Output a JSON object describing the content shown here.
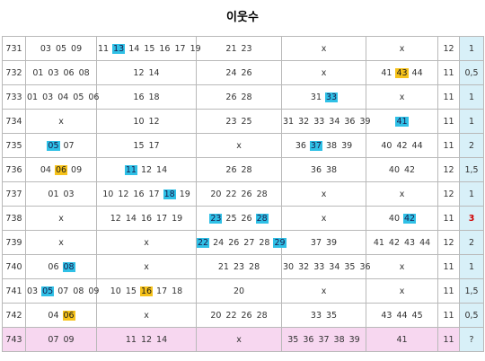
{
  "title": "이웃수",
  "colors": {
    "blue": "#2fc0e6",
    "yellow": "#f6c21a",
    "value_bg": "#d8f0f8",
    "highlight_row": "#f7d7f0",
    "red": "#d00000"
  },
  "rows": [
    {
      "no": "731",
      "c1": [
        {
          "t": "03"
        },
        {
          "t": "05"
        },
        {
          "t": "09"
        }
      ],
      "c2": [
        {
          "t": "11"
        },
        {
          "t": "13",
          "h": "blue"
        },
        {
          "t": "14"
        },
        {
          "t": "15"
        },
        {
          "t": "16"
        },
        {
          "t": "17"
        },
        {
          "t": "19"
        }
      ],
      "c3": [
        {
          "t": "21"
        },
        {
          "t": "23"
        }
      ],
      "c4": [
        {
          "t": "x"
        }
      ],
      "c5": [
        {
          "t": "x"
        }
      ],
      "cnt": "12",
      "val": "1"
    },
    {
      "no": "732",
      "c1": [
        {
          "t": "01"
        },
        {
          "t": "03"
        },
        {
          "t": "06"
        },
        {
          "t": "08"
        }
      ],
      "c2": [
        {
          "t": "12"
        },
        {
          "t": "14"
        }
      ],
      "c3": [
        {
          "t": "24"
        },
        {
          "t": "26"
        }
      ],
      "c4": [
        {
          "t": "x"
        }
      ],
      "c5": [
        {
          "t": "41"
        },
        {
          "t": "43",
          "h": "yellow"
        },
        {
          "t": "44"
        }
      ],
      "cnt": "11",
      "val": "0,5"
    },
    {
      "no": "733",
      "c1": [
        {
          "t": "01"
        },
        {
          "t": "03"
        },
        {
          "t": "04"
        },
        {
          "t": "05"
        },
        {
          "t": "06"
        }
      ],
      "c2": [
        {
          "t": "16"
        },
        {
          "t": "18"
        }
      ],
      "c3": [
        {
          "t": "26"
        },
        {
          "t": "28"
        }
      ],
      "c4": [
        {
          "t": "31"
        },
        {
          "t": "33",
          "h": "blue"
        }
      ],
      "c5": [
        {
          "t": "x"
        }
      ],
      "cnt": "11",
      "val": "1"
    },
    {
      "no": "734",
      "c1": [
        {
          "t": "x"
        }
      ],
      "c2": [
        {
          "t": "10"
        },
        {
          "t": "12"
        }
      ],
      "c3": [
        {
          "t": "23"
        },
        {
          "t": "25"
        }
      ],
      "c4": [
        {
          "t": "31"
        },
        {
          "t": "32"
        },
        {
          "t": "33"
        },
        {
          "t": "34"
        },
        {
          "t": "36"
        },
        {
          "t": "39"
        }
      ],
      "c5": [
        {
          "t": "41",
          "h": "blue"
        }
      ],
      "cnt": "11",
      "val": "1"
    },
    {
      "no": "735",
      "c1": [
        {
          "t": "05",
          "h": "blue"
        },
        {
          "t": "07"
        }
      ],
      "c2": [
        {
          "t": "15"
        },
        {
          "t": "17"
        }
      ],
      "c3": [
        {
          "t": "x"
        }
      ],
      "c4": [
        {
          "t": "36"
        },
        {
          "t": "37",
          "h": "blue"
        },
        {
          "t": "38"
        },
        {
          "t": "39"
        }
      ],
      "c5": [
        {
          "t": "40"
        },
        {
          "t": "42"
        },
        {
          "t": "44"
        }
      ],
      "cnt": "11",
      "val": "2"
    },
    {
      "no": "736",
      "c1": [
        {
          "t": "04"
        },
        {
          "t": "06",
          "h": "yellow"
        },
        {
          "t": "09"
        }
      ],
      "c2": [
        {
          "t": "11",
          "h": "blue"
        },
        {
          "t": "12"
        },
        {
          "t": "14"
        }
      ],
      "c3": [
        {
          "t": "26"
        },
        {
          "t": "28"
        }
      ],
      "c4": [
        {
          "t": "36"
        },
        {
          "t": "38"
        }
      ],
      "c5": [
        {
          "t": "40"
        },
        {
          "t": "42"
        }
      ],
      "cnt": "12",
      "val": "1,5"
    },
    {
      "no": "737",
      "c1": [
        {
          "t": "01"
        },
        {
          "t": "03"
        }
      ],
      "c2": [
        {
          "t": "10"
        },
        {
          "t": "12"
        },
        {
          "t": "16"
        },
        {
          "t": "17"
        },
        {
          "t": "18",
          "h": "blue"
        },
        {
          "t": "19"
        }
      ],
      "c3": [
        {
          "t": "20"
        },
        {
          "t": "22"
        },
        {
          "t": "26"
        },
        {
          "t": "28"
        }
      ],
      "c4": [
        {
          "t": "x"
        }
      ],
      "c5": [
        {
          "t": "x"
        }
      ],
      "cnt": "12",
      "val": "1"
    },
    {
      "no": "738",
      "c1": [
        {
          "t": "x"
        }
      ],
      "c2": [
        {
          "t": "12"
        },
        {
          "t": "14"
        },
        {
          "t": "16"
        },
        {
          "t": "17"
        },
        {
          "t": "19"
        }
      ],
      "c3": [
        {
          "t": "23",
          "h": "blue"
        },
        {
          "t": "25"
        },
        {
          "t": "26"
        },
        {
          "t": "28",
          "h": "blue"
        }
      ],
      "c4": [
        {
          "t": "x"
        }
      ],
      "c5": [
        {
          "t": "40"
        },
        {
          "t": "42",
          "h": "blue"
        }
      ],
      "cnt": "11",
      "val": "3",
      "val_red": true
    },
    {
      "no": "739",
      "c1": [
        {
          "t": "x"
        }
      ],
      "c2": [
        {
          "t": "x"
        }
      ],
      "c3": [
        {
          "t": "22",
          "h": "blue"
        },
        {
          "t": "24"
        },
        {
          "t": "26"
        },
        {
          "t": "27"
        },
        {
          "t": "28"
        },
        {
          "t": "29",
          "h": "blue"
        }
      ],
      "c4": [
        {
          "t": "37"
        },
        {
          "t": "39"
        }
      ],
      "c5": [
        {
          "t": "41"
        },
        {
          "t": "42"
        },
        {
          "t": "43"
        },
        {
          "t": "44"
        }
      ],
      "cnt": "12",
      "val": "2"
    },
    {
      "no": "740",
      "c1": [
        {
          "t": "06"
        },
        {
          "t": "08",
          "h": "blue"
        }
      ],
      "c2": [
        {
          "t": "x"
        }
      ],
      "c3": [
        {
          "t": "21"
        },
        {
          "t": "23"
        },
        {
          "t": "28"
        }
      ],
      "c4": [
        {
          "t": "30"
        },
        {
          "t": "32"
        },
        {
          "t": "33"
        },
        {
          "t": "34"
        },
        {
          "t": "35"
        },
        {
          "t": "36"
        }
      ],
      "c5": [
        {
          "t": "x"
        }
      ],
      "cnt": "11",
      "val": "1"
    },
    {
      "no": "741",
      "c1": [
        {
          "t": "03"
        },
        {
          "t": "05",
          "h": "blue"
        },
        {
          "t": "07"
        },
        {
          "t": "08"
        },
        {
          "t": "09"
        }
      ],
      "c2": [
        {
          "t": "10"
        },
        {
          "t": "15"
        },
        {
          "t": "16",
          "h": "yellow"
        },
        {
          "t": "17"
        },
        {
          "t": "18"
        }
      ],
      "c3": [
        {
          "t": "20"
        }
      ],
      "c4": [
        {
          "t": "x"
        }
      ],
      "c5": [
        {
          "t": "x"
        }
      ],
      "cnt": "11",
      "val": "1,5"
    },
    {
      "no": "742",
      "c1": [
        {
          "t": "04"
        },
        {
          "t": "06",
          "h": "yellow"
        }
      ],
      "c2": [
        {
          "t": "x"
        }
      ],
      "c3": [
        {
          "t": "20"
        },
        {
          "t": "22"
        },
        {
          "t": "26"
        },
        {
          "t": "28"
        }
      ],
      "c4": [
        {
          "t": "33"
        },
        {
          "t": "35"
        }
      ],
      "c5": [
        {
          "t": "43"
        },
        {
          "t": "44"
        },
        {
          "t": "45"
        }
      ],
      "cnt": "11",
      "val": "0,5"
    },
    {
      "no": "743",
      "highlight": true,
      "c1": [
        {
          "t": "07"
        },
        {
          "t": "09"
        }
      ],
      "c2": [
        {
          "t": "11"
        },
        {
          "t": "12"
        },
        {
          "t": "14"
        }
      ],
      "c3": [
        {
          "t": "x"
        }
      ],
      "c4": [
        {
          "t": "35"
        },
        {
          "t": "36"
        },
        {
          "t": "37"
        },
        {
          "t": "38"
        },
        {
          "t": "39"
        }
      ],
      "c5": [
        {
          "t": "41"
        }
      ],
      "cnt": "11",
      "val": "?"
    }
  ]
}
